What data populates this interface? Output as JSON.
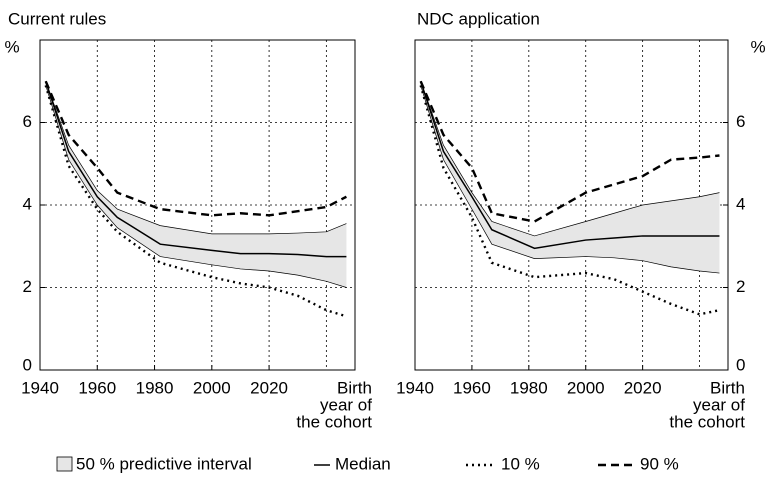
{
  "chart_data": [
    {
      "type": "line",
      "title": "Current rules",
      "ylabel": "%",
      "xlabel": [
        "Birth",
        "year of",
        "the cohort"
      ],
      "x": [
        1942,
        1950,
        1960,
        1967,
        1982,
        2000,
        2010,
        2020,
        2030,
        2040,
        2047
      ],
      "xlim": [
        1940,
        2050
      ],
      "xticks": [
        1940,
        1960,
        1980,
        2000,
        2020
      ],
      "xgrid": [
        1960,
        1980,
        2000,
        2020,
        2040
      ],
      "ylim": [
        0,
        8
      ],
      "yticks": [
        0,
        2,
        4,
        6
      ],
      "ygrid": [
        2,
        4,
        6
      ],
      "yaxis_side": "left",
      "band": {
        "name": "50 % predictive interval",
        "color": "#e6e6e6",
        "lower": [
          6.9,
          5.1,
          4.0,
          3.45,
          2.75,
          2.55,
          2.45,
          2.4,
          2.3,
          2.15,
          2.0
        ],
        "upper": [
          7.0,
          5.45,
          4.35,
          3.9,
          3.5,
          3.3,
          3.3,
          3.3,
          3.32,
          3.35,
          3.55
        ]
      },
      "series": [
        {
          "name": "Median",
          "color": "#000000",
          "dash": "solid",
          "values": [
            7.0,
            5.3,
            4.2,
            3.7,
            3.05,
            2.9,
            2.82,
            2.82,
            2.8,
            2.75,
            2.75
          ]
        },
        {
          "name": "10 %",
          "color": "#000000",
          "dash": "dotted",
          "values": [
            6.9,
            4.95,
            3.9,
            3.35,
            2.6,
            2.25,
            2.1,
            2.0,
            1.8,
            1.45,
            1.3
          ]
        },
        {
          "name": "90 %",
          "color": "#000000",
          "dash": "dashed",
          "values": [
            7.0,
            5.7,
            4.9,
            4.3,
            3.9,
            3.75,
            3.8,
            3.75,
            3.85,
            3.95,
            4.2
          ]
        }
      ]
    },
    {
      "type": "line",
      "title": "NDC application",
      "ylabel": "%",
      "xlabel": [
        "Birth",
        "year of",
        "the cohort"
      ],
      "x": [
        1942,
        1950,
        1960,
        1967,
        1982,
        2000,
        2010,
        2020,
        2030,
        2040,
        2047
      ],
      "xlim": [
        1940,
        2050
      ],
      "xticks": [
        1940,
        1960,
        1980,
        2000,
        2020
      ],
      "xgrid": [
        1960,
        1980,
        2000,
        2020,
        2040
      ],
      "ylim": [
        0,
        8
      ],
      "yticks": [
        0,
        2,
        4,
        6
      ],
      "ygrid": [
        2,
        4,
        6
      ],
      "yaxis_side": "right",
      "band": {
        "color": "#e6e6e6",
        "lower": [
          6.9,
          5.1,
          3.9,
          3.05,
          2.7,
          2.75,
          2.72,
          2.65,
          2.5,
          2.4,
          2.35
        ],
        "upper": [
          7.0,
          5.45,
          4.3,
          3.6,
          3.25,
          3.6,
          3.8,
          4.0,
          4.1,
          4.2,
          4.3
        ]
      },
      "series": [
        {
          "color": "#000000",
          "dash": "solid",
          "values": [
            7.0,
            5.3,
            4.2,
            3.4,
            2.95,
            3.15,
            3.2,
            3.25,
            3.25,
            3.25,
            3.25
          ]
        },
        {
          "color": "#000000",
          "dash": "dotted",
          "values": [
            6.9,
            4.9,
            3.7,
            2.6,
            2.25,
            2.35,
            2.2,
            1.9,
            1.6,
            1.35,
            1.45
          ]
        },
        {
          "color": "#000000",
          "dash": "dashed",
          "values": [
            7.0,
            5.7,
            4.9,
            3.8,
            3.6,
            4.3,
            4.5,
            4.7,
            5.1,
            5.15,
            5.2
          ]
        }
      ]
    }
  ]
}
